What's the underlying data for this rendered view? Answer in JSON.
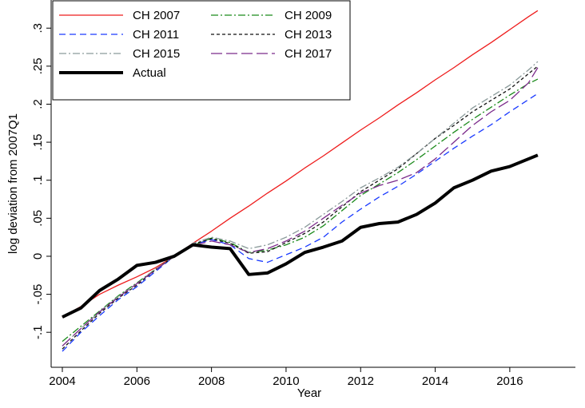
{
  "chart_data": {
    "type": "line",
    "xlabel": "Year",
    "ylabel": "log deviation from 2007Q1",
    "x": [
      2004,
      2004.5,
      2005,
      2005.5,
      2006,
      2006.5,
      2007,
      2007.5,
      2008,
      2008.5,
      2009,
      2009.5,
      2010,
      2010.5,
      2011,
      2011.5,
      2012,
      2012.5,
      2013,
      2013.5,
      2014,
      2014.5,
      2015,
      2015.5,
      2016,
      2016.5,
      2016.75
    ],
    "xlim": [
      2003.7,
      2017.76
    ],
    "xticks": [
      2004,
      2006,
      2008,
      2010,
      2012,
      2014,
      2016
    ],
    "ylim": [
      -0.146,
      0.337
    ],
    "yticks": [
      {
        "value": -0.1,
        "label": "-.1"
      },
      {
        "value": -0.05,
        "label": "-.05"
      },
      0,
      {
        "value": 0.05,
        "label": ".05"
      },
      {
        "value": 0.1,
        "label": ".1"
      },
      {
        "value": 0.15,
        "label": ".15"
      },
      {
        "value": 0.2,
        "label": ".2"
      },
      {
        "value": 0.25,
        "label": ".25"
      },
      {
        "value": 0.3,
        "label": ".3"
      }
    ],
    "grid": false,
    "legend": "top-left",
    "series": [
      {
        "name": "CH 2007",
        "color": "#ee1c1c",
        "dash": "none",
        "width": 1.3,
        "values": [
          -0.08,
          -0.066,
          -0.05,
          -0.038,
          -0.027,
          -0.015,
          0,
          0.017,
          0.033,
          0.05,
          0.066,
          0.083,
          0.099,
          0.116,
          0.132,
          0.149,
          0.166,
          0.182,
          0.199,
          0.215,
          0.232,
          0.248,
          0.265,
          0.281,
          0.298,
          0.315,
          0.323
        ]
      },
      {
        "name": "CH 2009",
        "color": "#1a8a1a",
        "dash": "9,3,2,3",
        "width": 1.3,
        "values": [
          -0.112,
          -0.092,
          -0.072,
          -0.052,
          -0.035,
          -0.017,
          0,
          0.014,
          0.024,
          0.018,
          0.005,
          0.008,
          0.015,
          0.025,
          0.04,
          0.06,
          0.08,
          0.095,
          0.11,
          0.127,
          0.145,
          0.163,
          0.18,
          0.196,
          0.212,
          0.227,
          0.233
        ]
      },
      {
        "name": "CH 2011",
        "color": "#1a3aff",
        "dash": "8,5",
        "width": 1.3,
        "values": [
          -0.125,
          -0.1,
          -0.078,
          -0.057,
          -0.04,
          -0.02,
          0,
          0.015,
          0.022,
          0.015,
          -0.003,
          -0.008,
          0.002,
          0.012,
          0.025,
          0.045,
          0.062,
          0.078,
          0.092,
          0.108,
          0.125,
          0.142,
          0.158,
          0.173,
          0.19,
          0.206,
          0.214
        ]
      },
      {
        "name": "CH 2013",
        "color": "#111111",
        "dash": "4,3",
        "width": 1.3,
        "values": [
          -0.122,
          -0.098,
          -0.075,
          -0.055,
          -0.038,
          -0.018,
          0,
          0.016,
          0.023,
          0.017,
          0.004,
          0.006,
          0.018,
          0.03,
          0.045,
          0.065,
          0.085,
          0.1,
          0.115,
          0.135,
          0.155,
          0.172,
          0.19,
          0.205,
          0.22,
          0.24,
          0.25
        ]
      },
      {
        "name": "CH 2015",
        "color": "#8a9a9a",
        "dash": "9,3,2,3",
        "width": 1.3,
        "values": [
          -0.118,
          -0.095,
          -0.073,
          -0.053,
          -0.036,
          -0.017,
          0,
          0.017,
          0.025,
          0.02,
          0.01,
          0.015,
          0.025,
          0.038,
          0.055,
          0.072,
          0.09,
          0.103,
          0.117,
          0.135,
          0.155,
          0.175,
          0.195,
          0.21,
          0.225,
          0.245,
          0.256
        ]
      },
      {
        "name": "CH 2017",
        "color": "#7b2a8a",
        "dash": "14,5",
        "width": 1.3,
        "values": [
          -0.118,
          -0.095,
          -0.073,
          -0.054,
          -0.036,
          -0.018,
          0,
          0.014,
          0.02,
          0.015,
          0.005,
          0.01,
          0.02,
          0.033,
          0.05,
          0.067,
          0.083,
          0.093,
          0.1,
          0.11,
          0.128,
          0.15,
          0.172,
          0.19,
          0.205,
          0.228,
          0.248
        ]
      },
      {
        "name": "Actual",
        "color": "#000000",
        "dash": "none",
        "width": 4,
        "values": [
          -0.08,
          -0.068,
          -0.045,
          -0.03,
          -0.012,
          -0.008,
          0,
          0.015,
          0.012,
          0.01,
          -0.024,
          -0.022,
          -0.01,
          0.005,
          0.012,
          0.02,
          0.038,
          0.043,
          0.045,
          0.055,
          0.07,
          0.09,
          0.1,
          0.112,
          0.118,
          0.128,
          0.133
        ]
      }
    ]
  }
}
